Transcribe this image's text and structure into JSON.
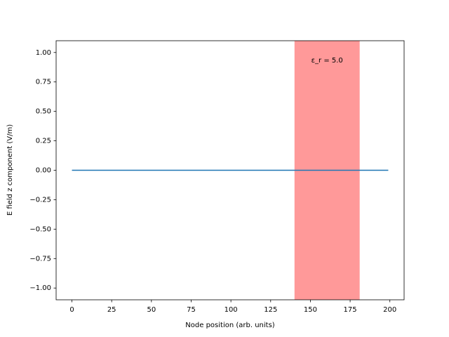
{
  "chart_data": {
    "type": "line",
    "xlabel": "Node position (arb. units)",
    "ylabel": "E field z component (V/m)",
    "x": [
      0,
      199
    ],
    "series": [
      {
        "color": "#1f77b4",
        "values": [
          0,
          0
        ]
      }
    ],
    "region": {
      "x0": 140,
      "x1": 181,
      "color": "#ff0000",
      "label": "ε_r = 5.0"
    },
    "xlim": [
      -9.95,
      208.95
    ],
    "ylim": [
      -1.1,
      1.1
    ],
    "xticks": [
      0,
      25,
      50,
      75,
      100,
      125,
      150,
      175,
      200
    ],
    "yticks": [
      {
        "value": -1,
        "label": "−1.00"
      },
      {
        "value": -0.75,
        "label": "−0.75"
      },
      {
        "value": -0.5,
        "label": "−0.50"
      },
      {
        "value": -0.25,
        "label": "−0.25"
      },
      {
        "value": 0,
        "label": "0.00"
      },
      {
        "value": 0.25,
        "label": "0.25"
      },
      {
        "value": 0.5,
        "label": "0.50"
      },
      {
        "value": 0.75,
        "label": "0.75"
      },
      {
        "value": 1,
        "label": "1.00"
      }
    ]
  }
}
